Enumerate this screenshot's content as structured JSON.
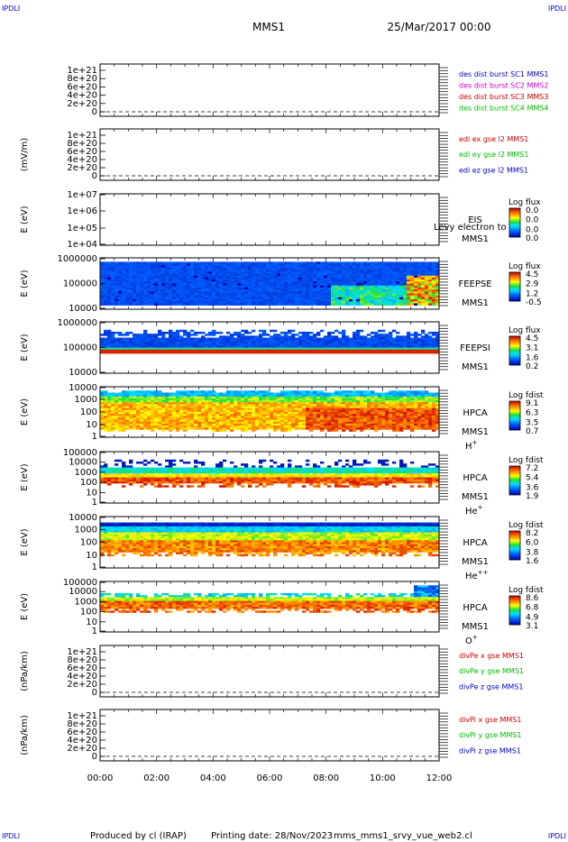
{
  "header": {
    "corner_left_top": "IPDLI",
    "corner_right_top": "IPDLI",
    "corner_left_bottom": "IPDLI",
    "corner_right_bottom": "IPDLI",
    "mission": "MMS1",
    "datetime": "25/Mar/2017 00:00"
  },
  "footer": {
    "produced_by": "Produced by cl (IRAP)",
    "printing_date": "Printing date: 28/Nov/2023",
    "filename": "mms_mms1_srvy_vue_web2.cl"
  },
  "colors": {
    "blue": "#0000cc",
    "magenta": "#cc00cc",
    "red": "#cc0000",
    "green": "#00bb00"
  },
  "chart_data": [
    {
      "type": "line",
      "id": "des",
      "ylabel": "",
      "yticks": [
        "1e+21",
        "8e+20",
        "6e+20",
        "4e+20",
        "2e+20",
        "0"
      ],
      "ylim": [
        0,
        1.1e+21
      ],
      "series": [
        {
          "name": "des dist burst SC1 MMS1",
          "color": "#0000cc"
        },
        {
          "name": "des dist burst SC2 MMS2",
          "color": "#cc00cc"
        },
        {
          "name": "des dist burst SC3 MMS3",
          "color": "#cc0000"
        },
        {
          "name": "des dist burst SC4 MMS4",
          "color": "#00bb00"
        }
      ]
    },
    {
      "type": "line",
      "id": "edi",
      "ylabel": "(mV/m)",
      "yticks": [
        "1e+21",
        "8e+20",
        "6e+20",
        "4e+20",
        "2e+20",
        "0"
      ],
      "ylim": [
        0,
        1.1e+21
      ],
      "series": [
        {
          "name": "edi ex gse l2 MMS1",
          "color": "#cc0000"
        },
        {
          "name": "edi ey gse l2 MMS1",
          "color": "#00bb00"
        },
        {
          "name": "edi ez gse l2 MMS1",
          "color": "#0000cc"
        }
      ]
    },
    {
      "type": "heatmap",
      "id": "eis",
      "ylabel": "E (eV)",
      "scale": "log",
      "yticks": [
        "1e+07",
        "1e+06",
        "1e+05",
        "1e+04"
      ],
      "instrument": "EIS",
      "mission": "MMS1",
      "species": "",
      "overlay_text": "Levy electron to",
      "colorbar_title": "Log flux",
      "colorbar_values": [
        "0.0",
        "0.0",
        "0.0",
        "0.0"
      ],
      "profile": "empty"
    },
    {
      "type": "heatmap",
      "id": "feepse",
      "ylabel": "E (eV)",
      "scale": "log",
      "yticks": [
        "1000000",
        "100000",
        "10000"
      ],
      "instrument": "FEEPSE",
      "mission": "MMS1",
      "species": "",
      "colorbar_title": "Log flux",
      "colorbar_values": [
        "4.5",
        "2.9",
        "1.2",
        "-0.5"
      ],
      "profile": "feepse"
    },
    {
      "type": "heatmap",
      "id": "feepsi",
      "ylabel": "E (eV)",
      "scale": "log",
      "yticks": [
        "1000000",
        "100000",
        "10000"
      ],
      "instrument": "FEEPSI",
      "mission": "MMS1",
      "species": "",
      "colorbar_title": "Log flux",
      "colorbar_values": [
        "4.5",
        "3.1",
        "1.6",
        "0.2"
      ],
      "profile": "feepsi"
    },
    {
      "type": "heatmap",
      "id": "hpca_h",
      "ylabel": "E (eV)",
      "scale": "log",
      "yticks": [
        "10000",
        "1000",
        "100",
        "10",
        "1"
      ],
      "instrument": "HPCA",
      "mission": "MMS1",
      "species": "H",
      "species_charge": "+",
      "colorbar_title": "Log fdist",
      "colorbar_values": [
        "9.1",
        "6.3",
        "3.5",
        "0.7"
      ],
      "profile": "hpca_h"
    },
    {
      "type": "heatmap",
      "id": "hpca_he",
      "ylabel": "E (eV)",
      "scale": "log",
      "yticks": [
        "100000",
        "10000",
        "1000",
        "100",
        "10",
        "1"
      ],
      "instrument": "HPCA",
      "mission": "MMS1",
      "species": "He",
      "species_charge": "+",
      "colorbar_title": "Log fdist",
      "colorbar_values": [
        "7.2",
        "5.4",
        "3.6",
        "1.9"
      ],
      "profile": "hpca_he"
    },
    {
      "type": "heatmap",
      "id": "hpca_hepp",
      "ylabel": "E (eV)",
      "scale": "log",
      "yticks": [
        "10000",
        "1000",
        "100",
        "10",
        "1"
      ],
      "instrument": "HPCA",
      "mission": "MMS1",
      "species": "He",
      "species_charge": "++",
      "colorbar_title": "Log fdist",
      "colorbar_values": [
        "8.2",
        "6.0",
        "3.8",
        "1.6"
      ],
      "profile": "hpca_hepp"
    },
    {
      "type": "heatmap",
      "id": "hpca_o",
      "ylabel": "E (eV)",
      "scale": "log",
      "yticks": [
        "100000",
        "10000",
        "1000",
        "100",
        "10",
        "1"
      ],
      "instrument": "HPCA",
      "mission": "MMS1",
      "species": "O",
      "species_charge": "+",
      "colorbar_title": "Log fdist",
      "colorbar_values": [
        "8.6",
        "6.8",
        "4.9",
        "3.1"
      ],
      "profile": "hpca_o"
    },
    {
      "type": "line",
      "id": "divpe",
      "ylabel": "(nPa/km)",
      "yticks": [
        "1e+21",
        "8e+20",
        "6e+20",
        "4e+20",
        "2e+20",
        "0"
      ],
      "ylim": [
        0,
        1.1e+21
      ],
      "series": [
        {
          "name": "divPe x gse MMS1",
          "color": "#cc0000"
        },
        {
          "name": "divPe y gse MMS1",
          "color": "#00bb00"
        },
        {
          "name": "divPe z gse MMS1",
          "color": "#0000cc"
        }
      ]
    },
    {
      "type": "line",
      "id": "divpi",
      "ylabel": "(nPa/km)",
      "yticks": [
        "1e+21",
        "8e+20",
        "6e+20",
        "4e+20",
        "2e+20",
        "0"
      ],
      "ylim": [
        0,
        1.1e+21
      ],
      "series": [
        {
          "name": "divPi x gse MMS1",
          "color": "#cc0000"
        },
        {
          "name": "divPi y gse MMS1",
          "color": "#00bb00"
        },
        {
          "name": "divPi z gse MMS1",
          "color": "#0000cc"
        }
      ]
    }
  ],
  "xaxis": {
    "ticks": [
      "00:00",
      "02:00",
      "04:00",
      "06:00",
      "08:00",
      "10:00",
      "12:00"
    ]
  }
}
